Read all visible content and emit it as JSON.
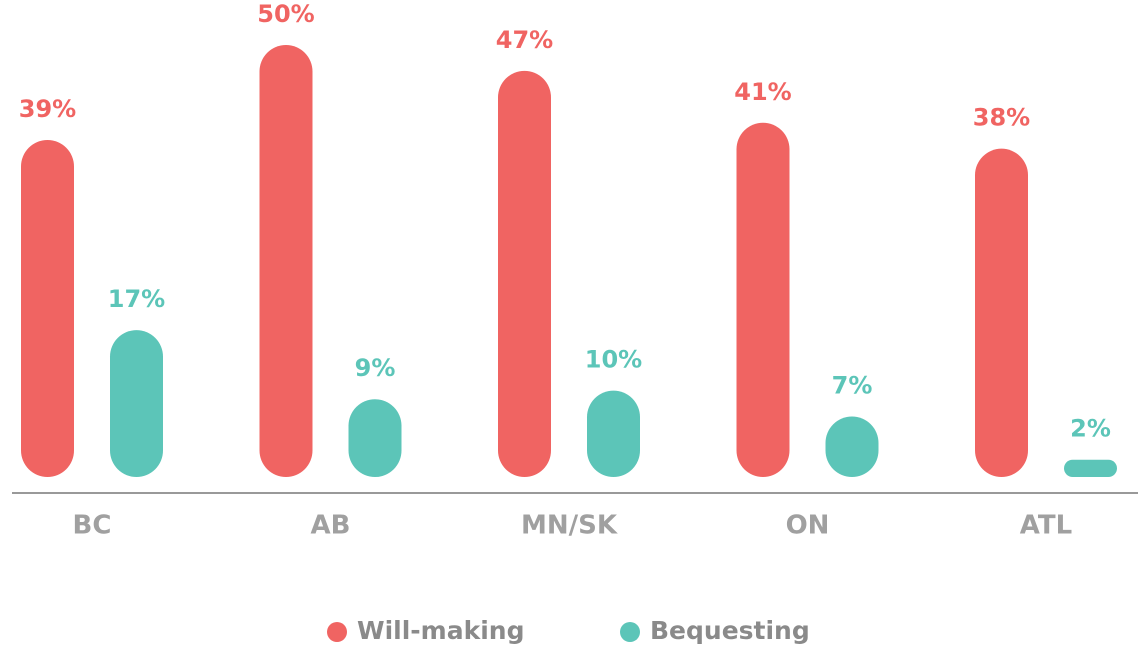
{
  "chart_data": {
    "type": "bar",
    "categories": [
      "BC",
      "AB",
      "MN/SK",
      "ON",
      "ATL"
    ],
    "series": [
      {
        "name": "Will-making",
        "color": "#f06462",
        "values": [
          39,
          50,
          47,
          41,
          38
        ],
        "value_labels": [
          "39%",
          "50%",
          "47%",
          "41%",
          "38%"
        ]
      },
      {
        "name": "Bequesting",
        "color": "#5cc5b8",
        "values": [
          17,
          9,
          10,
          7,
          2
        ],
        "value_labels": [
          "17%",
          "9%",
          "10%",
          "7%",
          "2%"
        ]
      }
    ],
    "legend": "bottom"
  }
}
